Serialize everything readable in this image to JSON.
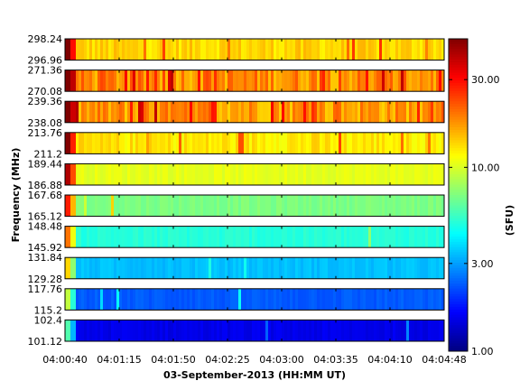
{
  "chart_data": {
    "type": "heatmap",
    "xlabel": "03-September-2013 (HH:MM UT)",
    "ylabel": "Frequency (MHz)",
    "colorbar_label": "(SFU)",
    "colorbar_scale": "log",
    "colorbar_range": [
      1.0,
      50.0
    ],
    "colorbar_ticks": [
      {
        "value": 1.0,
        "label": "1.00"
      },
      {
        "value": 3.0,
        "label": "3.00"
      },
      {
        "value": 10.0,
        "label": "10.00"
      },
      {
        "value": 30.0,
        "label": "30.00"
      }
    ],
    "colormap": "jet",
    "x_range": [
      "04:00:40",
      "04:04:48"
    ],
    "x_ticks": [
      "04:00:40",
      "04:01:15",
      "04:01:50",
      "04:02:25",
      "04:03:00",
      "04:03:35",
      "04:04:10",
      "04:04:48"
    ],
    "bands": [
      {
        "top_label": "298.24",
        "bottom_label": "296.96",
        "level_sfu": 13.5,
        "variability": "medium"
      },
      {
        "top_label": "271.36",
        "bottom_label": "270.08",
        "level_sfu": 18.0,
        "variability": "high"
      },
      {
        "top_label": "239.36",
        "bottom_label": "238.08",
        "level_sfu": 17.0,
        "variability": "high"
      },
      {
        "top_label": "213.76",
        "bottom_label": "211.2",
        "level_sfu": 12.5,
        "variability": "medium"
      },
      {
        "top_label": "189.44",
        "bottom_label": "186.88",
        "level_sfu": 10.5,
        "variability": "low"
      },
      {
        "top_label": "167.68",
        "bottom_label": "165.12",
        "level_sfu": 7.0,
        "variability": "low"
      },
      {
        "top_label": "148.48",
        "bottom_label": "145.92",
        "level_sfu": 5.0,
        "variability": "low"
      },
      {
        "top_label": "131.84",
        "bottom_label": "129.28",
        "level_sfu": 3.4,
        "variability": "low"
      },
      {
        "top_label": "117.76",
        "bottom_label": "115.2",
        "level_sfu": 2.3,
        "variability": "low"
      },
      {
        "top_label": "102.4",
        "bottom_label": "101.12",
        "level_sfu": 1.5,
        "variability": "low"
      }
    ]
  }
}
